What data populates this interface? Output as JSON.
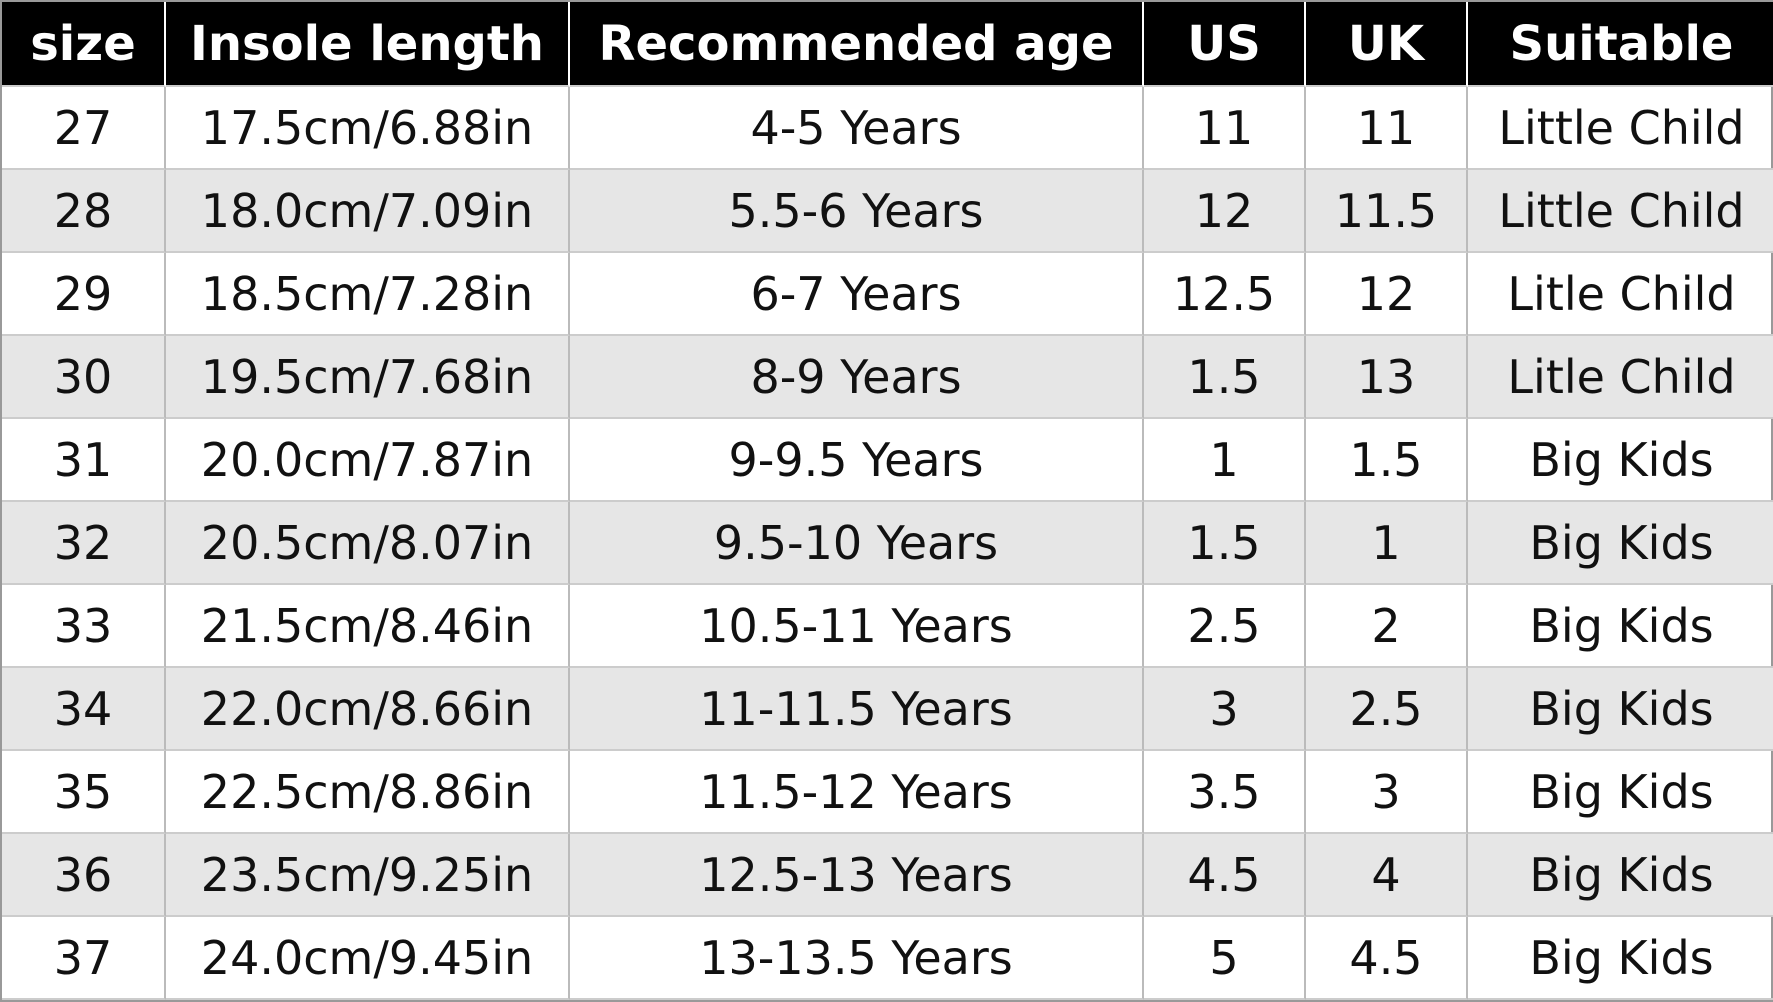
{
  "table": {
    "header": [
      "size",
      "Insole length",
      "Recommended age",
      "US",
      "UK",
      "Suitable"
    ],
    "rows": [
      [
        "27",
        "17.5cm/6.88in",
        "4-5 Years",
        "11",
        "11",
        "Little Child"
      ],
      [
        "28",
        "18.0cm/7.09in",
        "5.5-6 Years",
        "12",
        "11.5",
        "Little Child"
      ],
      [
        "29",
        "18.5cm/7.28in",
        "6-7 Years",
        "12.5",
        "12",
        "Litle Child"
      ],
      [
        "30",
        "19.5cm/7.68in",
        "8-9 Years",
        "1.5",
        "13",
        "Litle Child"
      ],
      [
        "31",
        "20.0cm/7.87in",
        "9-9.5 Years",
        "1",
        "1.5",
        "Big Kids"
      ],
      [
        "32",
        "20.5cm/8.07in",
        "9.5-10 Years",
        "1.5",
        "1",
        "Big Kids"
      ],
      [
        "33",
        "21.5cm/8.46in",
        "10.5-11 Years",
        "2.5",
        "2",
        "Big Kids"
      ],
      [
        "34",
        "22.0cm/8.66in",
        "11-11.5 Years",
        "3",
        "2.5",
        "Big Kids"
      ],
      [
        "35",
        "22.5cm/8.86in",
        "11.5-12 Years",
        "3.5",
        "3",
        "Big Kids"
      ],
      [
        "36",
        "23.5cm/9.25in",
        "12.5-13 Years",
        "4.5",
        "4",
        "Big Kids"
      ],
      [
        "37",
        "24.0cm/9.45in",
        "13-13.5 Years",
        "5",
        "4.5",
        "Big Kids"
      ]
    ]
  }
}
